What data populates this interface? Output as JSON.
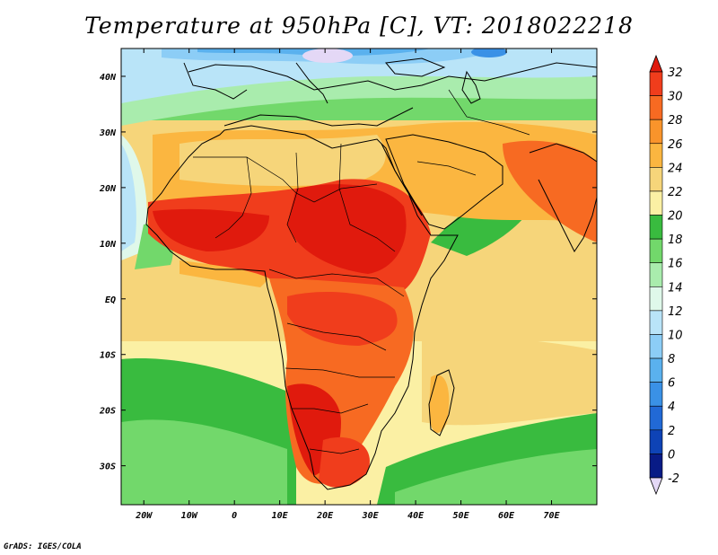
{
  "title": "Temperature at 950hPa [C], VT: 2018022218",
  "credit": "GrADS: IGES/COLA",
  "map": {
    "projection": "latlon",
    "lon_range": [
      -25,
      80
    ],
    "lat_range": [
      -37,
      45
    ],
    "x_ticks": [
      "20W",
      "10W",
      "0",
      "10E",
      "20E",
      "30E",
      "40E",
      "50E",
      "60E",
      "70E"
    ],
    "y_ticks": [
      "40N",
      "30N",
      "20N",
      "10N",
      "EQ",
      "10S",
      "20S",
      "30S"
    ],
    "variable": "Temperature at 950hPa",
    "units": "C",
    "valid_time": "2018022218"
  },
  "colorbar": {
    "labels": [
      "32",
      "30",
      "28",
      "26",
      "24",
      "22",
      "20",
      "18",
      "16",
      "14",
      "12",
      "10",
      "8",
      "6",
      "4",
      "2",
      "0",
      "-2"
    ],
    "colors": [
      "#e01a0d",
      "#f03d1c",
      "#f76a22",
      "#f9942b",
      "#fbb640",
      "#f6d57a",
      "#fbf0a4",
      "#39bb3f",
      "#72d86b",
      "#a9ecad",
      "#dff8ea",
      "#b9e4f8",
      "#8ccdf6",
      "#5ab1ee",
      "#3a91e6",
      "#2169d6",
      "#0e43b6",
      "#081b86",
      "#e4d8f6"
    ]
  }
}
